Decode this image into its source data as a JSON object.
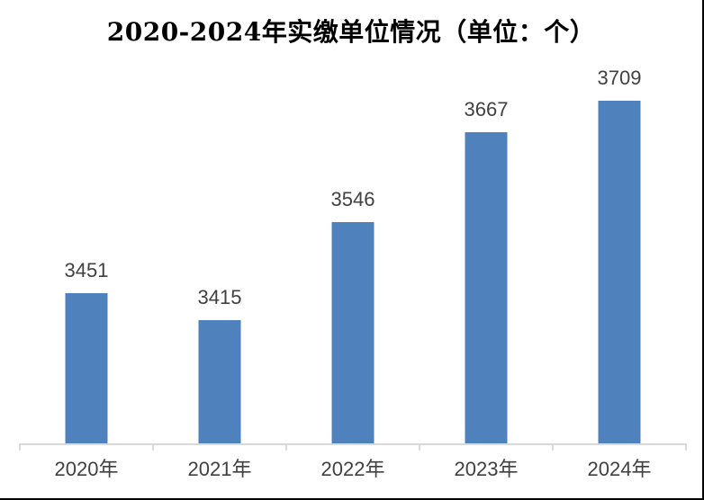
{
  "chart_data": {
    "type": "bar",
    "title": "2020-2024年实缴单位情况（单位：个）",
    "categories": [
      "2020年",
      "2021年",
      "2022年",
      "2023年",
      "2024年"
    ],
    "values": [
      3451,
      3415,
      3546,
      3667,
      3709
    ],
    "data_labels": [
      "3451",
      "3415",
      "3546",
      "3667",
      "3709"
    ],
    "xlabel": "",
    "ylabel": "",
    "ylim": [
      3250,
      3750
    ],
    "grid": false,
    "legend": "none",
    "bar_color": "#4f81bd",
    "axis_line_color": "#d9d9d9",
    "data_label_color": "#404040",
    "axis_label_color": "#404040",
    "title_color": "#000000",
    "background_color": "#ffffff"
  }
}
